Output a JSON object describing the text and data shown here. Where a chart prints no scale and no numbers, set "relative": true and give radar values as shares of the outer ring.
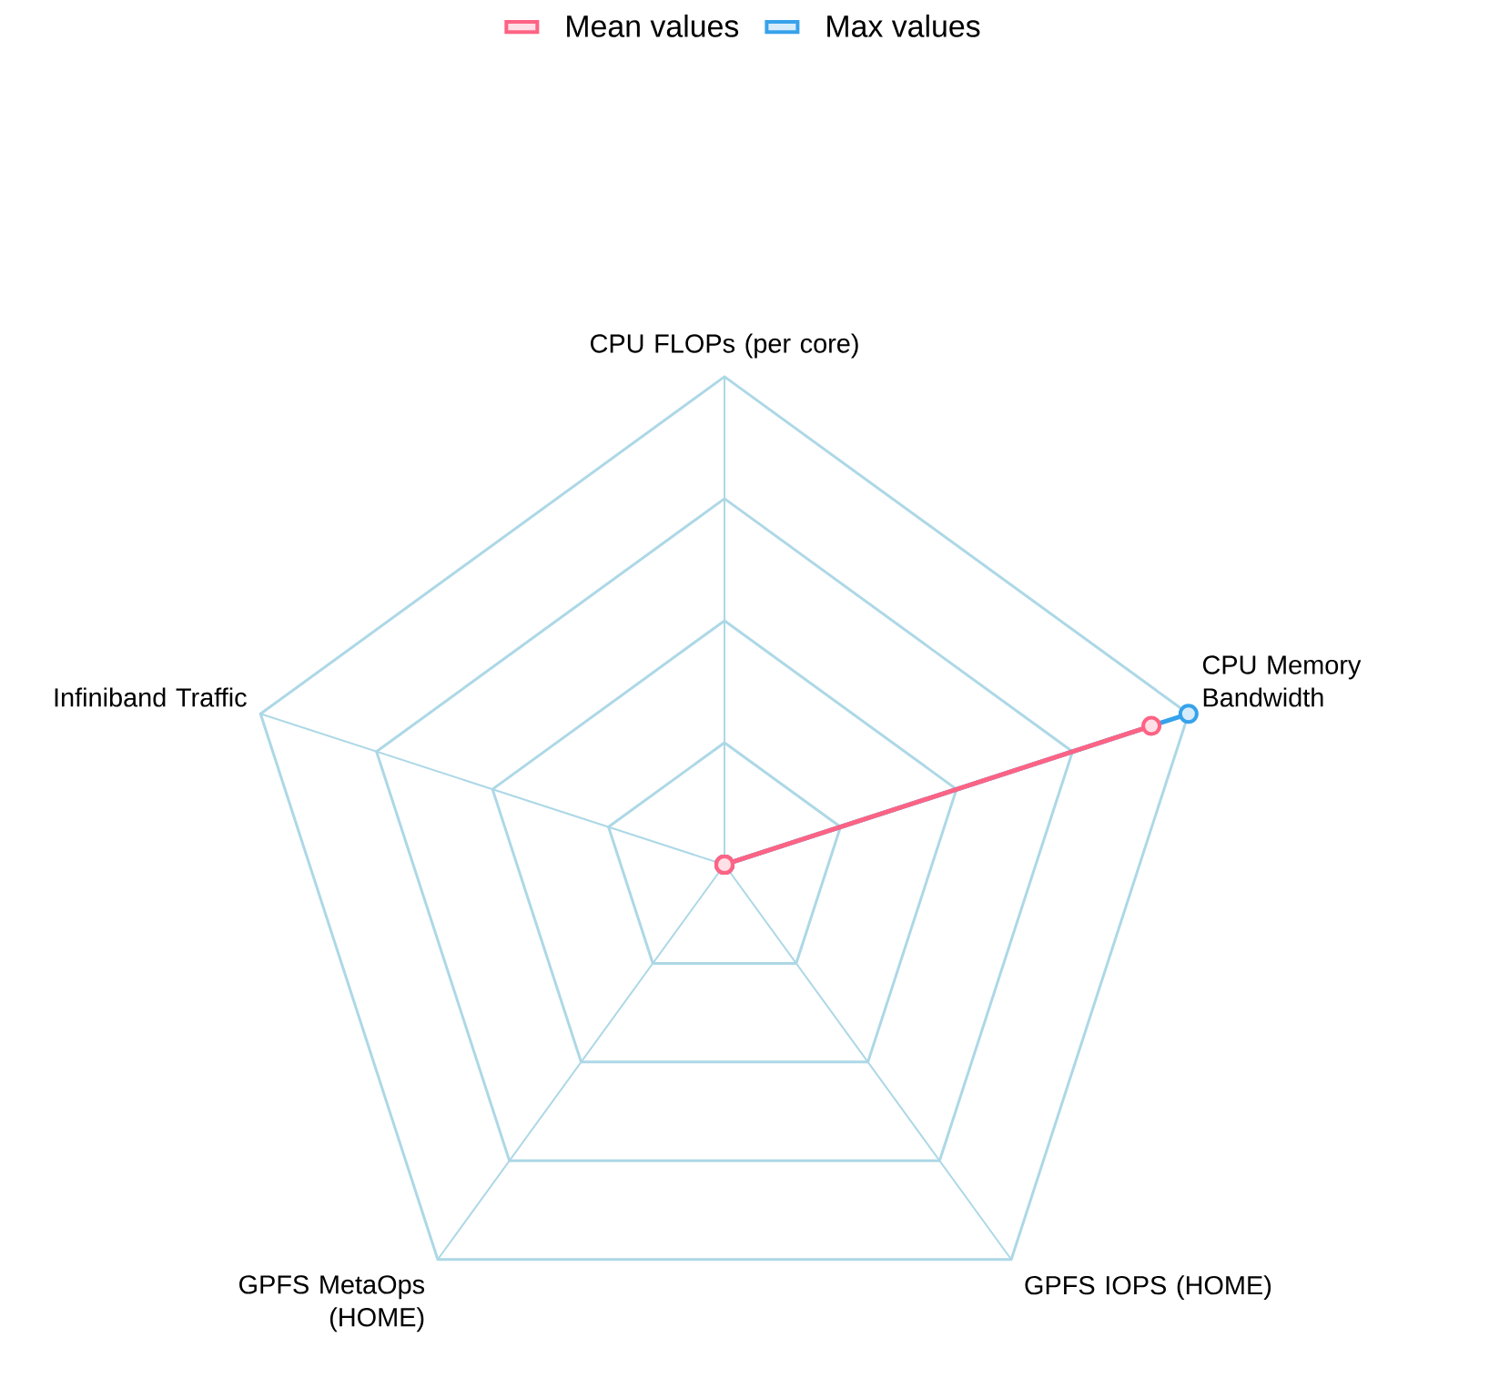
{
  "chart_data": {
    "type": "radar",
    "categories": [
      "CPU FLOPs (per core)",
      "CPU Memory Bandwidth",
      "GPFS IOPS (HOME)",
      "GPFS MetaOps (HOME)",
      "Infiniband Traffic"
    ],
    "relative": true,
    "legend": "top",
    "marker": "circle",
    "series": [
      {
        "name": "Mean values",
        "color": "#ff6384",
        "values": [
          0,
          0.92,
          0,
          0,
          0
        ]
      },
      {
        "name": "Max values",
        "color": "#36a2eb",
        "values": [
          0,
          1,
          0,
          0,
          0
        ]
      }
    ]
  }
}
